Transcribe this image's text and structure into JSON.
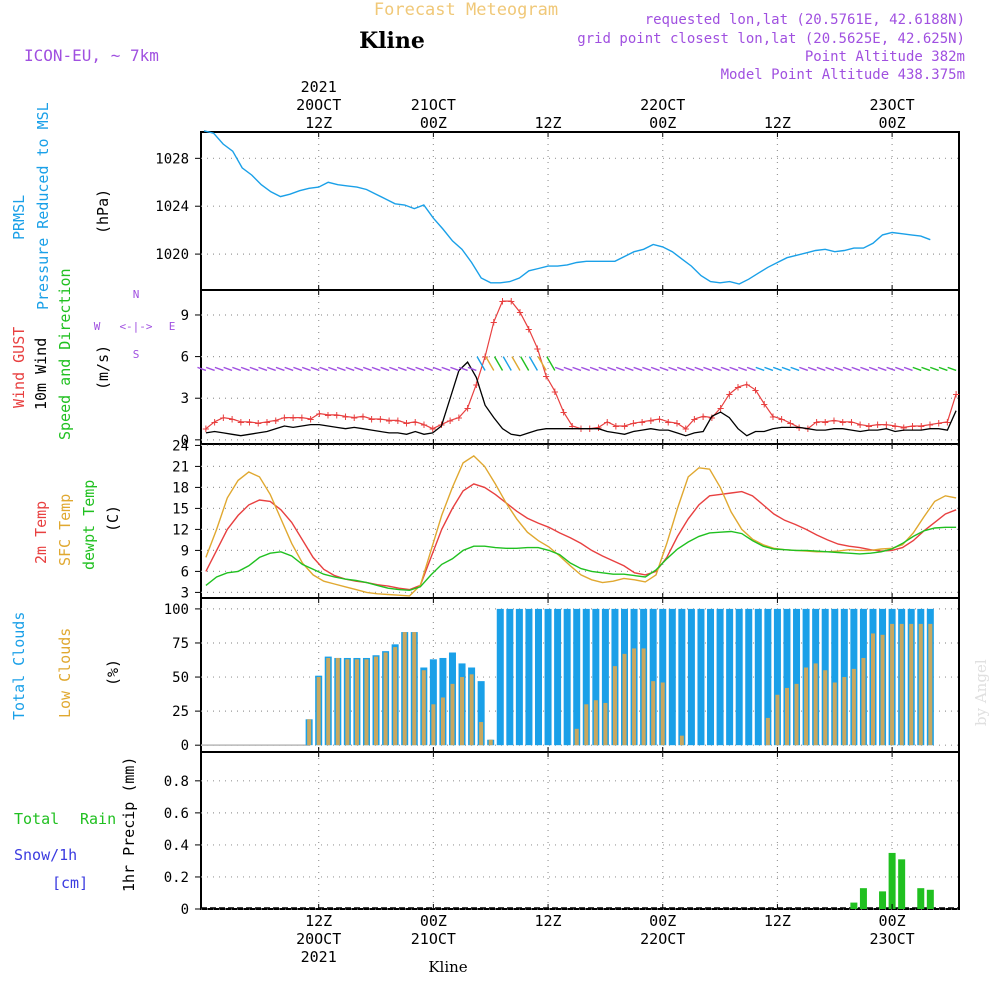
{
  "header": {
    "title": "Forecast Meteogram",
    "location": "Kline",
    "model": "ICON-EU, ~ 7km",
    "requested": "requested lon,lat (20.5761E, 42.6188N)",
    "grid_point": "grid point closest lon,lat (20.5625E, 42.625N)",
    "point_altitude": "Point Altitude 382m",
    "model_altitude": "Model Point Altitude 438.375m",
    "footer_location": "Kline",
    "credit": "by Angel"
  },
  "time_axis": {
    "top_labels": [
      {
        "hour": 12,
        "lines": [
          "2021",
          "20OCT",
          "12Z"
        ]
      },
      {
        "hour": 24,
        "lines": [
          "21OCT",
          "00Z"
        ]
      },
      {
        "hour": 36,
        "lines": [
          "12Z"
        ]
      },
      {
        "hour": 48,
        "lines": [
          "22OCT",
          "00Z"
        ]
      },
      {
        "hour": 60,
        "lines": [
          "12Z"
        ]
      },
      {
        "hour": 72,
        "lines": [
          "23OCT",
          "00Z"
        ]
      }
    ],
    "bottom_labels": [
      {
        "hour": 12,
        "lines": [
          "12Z",
          "20OCT",
          "2021"
        ]
      },
      {
        "hour": 24,
        "lines": [
          "00Z",
          "21OCT"
        ]
      },
      {
        "hour": 36,
        "lines": [
          "12Z"
        ]
      },
      {
        "hour": 48,
        "lines": [
          "00Z",
          "22OCT"
        ]
      },
      {
        "hour": 60,
        "lines": [
          "12Z"
        ]
      },
      {
        "hour": 72,
        "lines": [
          "00Z",
          "23OCT"
        ]
      }
    ]
  },
  "colors": {
    "pressure": "#1aa0e8",
    "gust": "#e84040",
    "wind": "#000000",
    "dir": "#20c020",
    "temp2m": "#e84040",
    "sfc": "#e0a830",
    "dewpt": "#20c020",
    "total_clouds": "#1aa0e8",
    "low_clouds": "#c8a860",
    "rain": "#20c020",
    "snow": "#3a3ae0",
    "purple": "#a050e0",
    "title": "#f0c878"
  },
  "panels": {
    "pressure": {
      "label1": "PRMSL",
      "label2": "Pressure Reduced to MSL",
      "unit": "(hPa)"
    },
    "wind": {
      "label_gust": "Wind GUST",
      "label_wind": "10m Wind",
      "label_dir": "Speed and Direction",
      "unit": "(m/s)",
      "compass_n": "N",
      "compass_s": "S",
      "compass_w": "W",
      "compass_e": "E",
      "compass_line": "<-|->"
    },
    "temp": {
      "label1": "2m Temp",
      "label2": "SFC Temp",
      "label3": "dewpt Temp",
      "unit": "(C)"
    },
    "clouds": {
      "label1": "Total Clouds",
      "label2": "Low Clouds",
      "unit": "(%)"
    },
    "precip": {
      "label_total": "Total",
      "label_rain": "Rain",
      "label_snow": "Snow/1h",
      "label_cm": "[cm]",
      "label_axis": "1hr Precip (mm)"
    }
  },
  "chart_data": [
    {
      "type": "line",
      "title": "Pressure Reduced to MSL",
      "ylabel": "hPa",
      "ylim": [
        1017,
        1030.2
      ],
      "yticks": [
        1020,
        1024,
        1028
      ],
      "x_hours": [
        0,
        1,
        2,
        3,
        4,
        5,
        6,
        7,
        8,
        9,
        10,
        11,
        12,
        13,
        14,
        15,
        16,
        17,
        18,
        19,
        20,
        21,
        22,
        23,
        24,
        25,
        26,
        27,
        28,
        29,
        30,
        31,
        32,
        33,
        34,
        35,
        36,
        37,
        38,
        39,
        40,
        41,
        42,
        43,
        44,
        45,
        46,
        47,
        48,
        49,
        50,
        51,
        52,
        53,
        54,
        55,
        56,
        57,
        58,
        59,
        60,
        61,
        62,
        63,
        64,
        65,
        66,
        67,
        68,
        69,
        70,
        71,
        72,
        73,
        74,
        75,
        76
      ],
      "values": [
        1030.3,
        1030.1,
        1029.2,
        1028.6,
        1027.2,
        1026.6,
        1025.8,
        1025.2,
        1024.8,
        1025.0,
        1025.3,
        1025.5,
        1025.6,
        1026.0,
        1025.8,
        1025.7,
        1025.6,
        1025.4,
        1025.0,
        1024.6,
        1024.2,
        1024.1,
        1023.8,
        1024.1,
        1023.0,
        1022.1,
        1021.1,
        1020.4,
        1019.3,
        1018.0,
        1017.6,
        1017.6,
        1017.7,
        1018.0,
        1018.6,
        1018.8,
        1019.0,
        1019.0,
        1019.1,
        1019.3,
        1019.4,
        1019.4,
        1019.4,
        1019.4,
        1019.8,
        1020.2,
        1020.4,
        1020.8,
        1020.6,
        1020.2,
        1019.6,
        1019.0,
        1018.2,
        1017.7,
        1017.6,
        1017.7,
        1017.5,
        1017.9,
        1018.4,
        1018.9,
        1019.3,
        1019.7,
        1019.9,
        1020.1,
        1020.3,
        1020.4,
        1020.2,
        1020.3,
        1020.5,
        1020.5,
        1020.9,
        1021.6,
        1021.8,
        1021.7,
        1021.6,
        1021.5,
        1021.2
      ]
    },
    {
      "type": "line",
      "title": "Wind GUST / 10m Wind Speed and Direction",
      "ylabel": "m/s",
      "ylim": [
        -0.3,
        10.8
      ],
      "yticks": [
        0,
        3,
        6,
        9
      ],
      "series": [
        {
          "name": "Wind GUST",
          "values": [
            0.8,
            1.3,
            1.6,
            1.5,
            1.3,
            1.3,
            1.2,
            1.3,
            1.4,
            1.6,
            1.6,
            1.6,
            1.5,
            1.9,
            1.8,
            1.8,
            1.7,
            1.6,
            1.7,
            1.5,
            1.5,
            1.4,
            1.4,
            1.2,
            1.3,
            1.1,
            0.8,
            1.1,
            1.4,
            1.6,
            2.3,
            4.0,
            6.0,
            8.5,
            10.0,
            10.0,
            9.2,
            8.0,
            6.6,
            4.6,
            3.5,
            2.0,
            1.0,
            0.8,
            0.8,
            0.9,
            1.3,
            1.0,
            1.0,
            1.2,
            1.3,
            1.4,
            1.5,
            1.3,
            1.2,
            0.8,
            1.5,
            1.7,
            1.6,
            2.3,
            3.3,
            3.8,
            4.0,
            3.6,
            2.6,
            1.7,
            1.5,
            1.2,
            0.9,
            0.8,
            1.3,
            1.3,
            1.4,
            1.3,
            1.3,
            1.1,
            1.0,
            1.1,
            1.1,
            1.0,
            0.9,
            1.0,
            1.0,
            1.1,
            1.2,
            1.3,
            3.3
          ]
        },
        {
          "name": "10m Wind",
          "values": [
            0.5,
            0.6,
            0.5,
            0.4,
            0.3,
            0.4,
            0.5,
            0.6,
            0.8,
            1.0,
            0.9,
            1.0,
            1.1,
            1.1,
            1.0,
            0.9,
            0.8,
            0.9,
            0.8,
            0.7,
            0.6,
            0.5,
            0.5,
            0.4,
            0.6,
            0.4,
            0.5,
            1.0,
            3.0,
            5.0,
            5.6,
            4.5,
            2.5,
            1.6,
            0.8,
            0.4,
            0.3,
            0.5,
            0.7,
            0.8,
            0.8,
            0.8,
            0.8,
            0.8,
            0.8,
            0.8,
            0.6,
            0.5,
            0.4,
            0.6,
            0.7,
            0.8,
            0.7,
            0.7,
            0.5,
            0.3,
            0.5,
            0.6,
            1.7,
            2.0,
            1.6,
            0.8,
            0.3,
            0.6,
            0.6,
            0.8,
            0.9,
            0.9,
            0.9,
            0.8,
            0.7,
            0.7,
            0.8,
            0.8,
            0.7,
            0.6,
            0.7,
            0.7,
            0.8,
            0.6,
            0.7,
            0.7,
            0.7,
            0.8,
            0.8,
            0.7,
            2.1
          ]
        }
      ],
      "direction_arrows_level": 5
    },
    {
      "type": "line",
      "title": "2m Temp / SFC Temp / dewpt Temp",
      "ylabel": "C",
      "ylim": [
        2.2,
        24.2
      ],
      "yticks": [
        3,
        6,
        9,
        12,
        15,
        18,
        21,
        24
      ],
      "series": [
        {
          "name": "2m Temp",
          "values": [
            6.0,
            9.0,
            12.0,
            14.0,
            15.5,
            16.2,
            16.0,
            14.8,
            13.0,
            10.5,
            8.0,
            6.3,
            5.4,
            4.9,
            4.6,
            4.4,
            4.1,
            3.9,
            3.6,
            3.4,
            4.0,
            8.0,
            12.0,
            15.0,
            17.5,
            18.5,
            18.0,
            17.0,
            15.8,
            14.6,
            13.6,
            12.9,
            12.3,
            11.5,
            10.8,
            10.0,
            9.0,
            8.2,
            7.5,
            6.8,
            5.8,
            5.5,
            6.0,
            8.0,
            11.0,
            13.5,
            15.5,
            16.8,
            17.0,
            17.2,
            17.4,
            16.8,
            15.5,
            14.2,
            13.3,
            12.7,
            12.0,
            11.2,
            10.5,
            9.9,
            9.6,
            9.4,
            9.1,
            8.9,
            9.0,
            9.4,
            10.4,
            11.8,
            13.0,
            14.2,
            14.8
          ]
        },
        {
          "name": "SFC Temp",
          "values": [
            8.0,
            12.0,
            16.5,
            19.0,
            20.2,
            19.5,
            17.0,
            13.5,
            10.0,
            7.2,
            5.5,
            4.6,
            4.2,
            3.8,
            3.4,
            3.0,
            2.8,
            2.7,
            2.6,
            2.5,
            4.0,
            9.0,
            14.0,
            18.0,
            21.5,
            22.5,
            21.0,
            18.5,
            15.8,
            13.5,
            11.6,
            10.4,
            9.5,
            8.2,
            6.8,
            5.5,
            4.8,
            4.4,
            4.6,
            5.0,
            4.8,
            4.5,
            5.5,
            10.0,
            15.0,
            19.5,
            20.8,
            20.6,
            18.0,
            14.5,
            12.0,
            10.6,
            9.8,
            9.3,
            9.1,
            9.0,
            8.9,
            8.8,
            8.8,
            8.9,
            9.1,
            9.0,
            9.0,
            9.2,
            9.3,
            9.8,
            11.5,
            13.8,
            16.0,
            16.8,
            16.5
          ]
        },
        {
          "name": "dewpt Temp",
          "values": [
            4.0,
            5.2,
            5.8,
            6.0,
            6.8,
            8.0,
            8.6,
            8.8,
            8.2,
            7.0,
            6.3,
            5.6,
            5.2,
            4.9,
            4.7,
            4.4,
            4.0,
            3.6,
            3.4,
            3.3,
            3.8,
            5.5,
            7.0,
            7.8,
            9.0,
            9.6,
            9.6,
            9.4,
            9.3,
            9.3,
            9.4,
            9.4,
            9.0,
            8.4,
            7.2,
            6.4,
            6.0,
            5.8,
            5.6,
            5.6,
            5.4,
            5.2,
            6.2,
            7.8,
            9.2,
            10.2,
            11.0,
            11.5,
            11.6,
            11.7,
            11.4,
            10.4,
            9.6,
            9.2,
            9.1,
            9.0,
            9.0,
            8.9,
            8.8,
            8.7,
            8.6,
            8.5,
            8.6,
            8.8,
            9.2,
            10.0,
            11.0,
            11.8,
            12.2,
            12.3,
            12.3
          ]
        }
      ]
    },
    {
      "type": "bar",
      "title": "Total Clouds / Low Clouds",
      "ylabel": "%",
      "ylim": [
        -5,
        108
      ],
      "yticks": [
        0,
        25,
        50,
        75,
        100
      ],
      "series": [
        {
          "name": "Total Clouds",
          "values": [
            0,
            0,
            0,
            0,
            0,
            0,
            0,
            0,
            0,
            0,
            0,
            0,
            0,
            0,
            0,
            0,
            0,
            0,
            0,
            0,
            0,
            0,
            0,
            0,
            0,
            0,
            0,
            0,
            0,
            0,
            0,
            0,
            0,
            0,
            0,
            0,
            0,
            0,
            0,
            0,
            0,
            0,
            0,
            0,
            0,
            0,
            0,
            0,
            0,
            0,
            0,
            0,
            0,
            0,
            0,
            0,
            0,
            0,
            0,
            0,
            0,
            0,
            0,
            0,
            0,
            0,
            0,
            0,
            0,
            0,
            0,
            0,
            0,
            0,
            0,
            0,
            0,
            0,
            0,
            0,
            0,
            0,
            0,
            0,
            0,
            0,
            0,
            0,
            0,
            0,
            0,
            0,
            0,
            0,
            0,
            0,
            0,
            0,
            0,
            0,
            0,
            0,
            0,
            0,
            0,
            0,
            0,
            0,
            0,
            0,
            0,
            0,
            0,
            0,
            0,
            0,
            0,
            0,
            0,
            0,
            0,
            0,
            0,
            0,
            0,
            0,
            0,
            0,
            0,
            0,
            0,
            0,
            0,
            0,
            0,
            0,
            0,
            0,
            0,
            0,
            0,
            0,
            0,
            0,
            0,
            0,
            0,
            0,
            0,
            0,
            0,
            0,
            0,
            0
          ]
        },
        {
          "name": "Low Clouds",
          "values": []
        }
      ]
    },
    {
      "type": "bar",
      "title": "1hr Precip (mm)",
      "ylabel": "mm",
      "ylim": [
        0,
        0.98
      ],
      "yticks": [
        0,
        0.2,
        0.4,
        0.6,
        0.8
      ],
      "categories_hours": [
        68,
        69,
        71,
        72,
        73,
        75,
        76
      ],
      "values": [
        0.04,
        0.13,
        0.11,
        0.35,
        0.31,
        0.13,
        0.12
      ]
    }
  ],
  "cloud_data": {
    "hours": [
      11.0,
      12.0,
      13.0,
      14.0,
      15.0,
      16.0,
      17.0,
      18.0,
      19.0,
      20.0,
      21.0,
      22.0,
      23.0,
      24.0,
      25.0,
      26.0,
      27.0,
      28.0,
      29.0,
      30.0,
      31.0,
      32.0,
      33.0,
      34.0,
      35.0,
      36.0,
      37.0,
      38.0,
      39.0,
      40.0,
      41.0,
      42.0,
      43.0,
      44.0,
      45.0,
      46.0,
      47.0,
      48.0,
      49.0,
      50.0,
      51.0,
      52.0,
      53.0,
      54.0,
      55.0,
      56.0,
      57.0,
      58.0,
      59.0,
      60.0,
      61.0,
      62.0,
      63.0,
      64.0,
      65.0,
      66.0,
      67.0,
      68.0,
      69.0,
      70.0,
      71.0,
      72.0,
      73.0,
      74.0,
      75.0,
      76.0
    ],
    "total": [
      19,
      51,
      65,
      64,
      64,
      64,
      64,
      66,
      69,
      74,
      83,
      83,
      57,
      63,
      64,
      68,
      60,
      57,
      47,
      4,
      100,
      100,
      100,
      100,
      100,
      100,
      100,
      100,
      100,
      100,
      100,
      100,
      100,
      100,
      100,
      100,
      100,
      100,
      100,
      100,
      100,
      100,
      100,
      100,
      100,
      100,
      100,
      100,
      100,
      100,
      100,
      100,
      100,
      100,
      100,
      100,
      100,
      100,
      100,
      100,
      100,
      100,
      100,
      100,
      100,
      100
    ],
    "low": [
      19,
      50,
      64,
      64,
      63,
      63,
      63,
      65,
      68,
      72,
      83,
      83,
      55,
      30,
      35,
      45,
      50,
      52,
      17,
      4,
      0,
      0,
      0,
      0,
      0,
      0,
      0,
      0,
      12,
      30,
      33,
      31,
      58,
      67,
      71,
      71,
      47,
      46,
      0,
      7,
      0,
      0,
      0,
      0,
      0,
      0,
      0,
      0,
      20,
      37,
      42,
      45,
      57,
      60,
      55,
      46,
      50,
      56,
      64,
      82,
      81,
      89,
      89,
      89,
      89,
      89
    ]
  }
}
